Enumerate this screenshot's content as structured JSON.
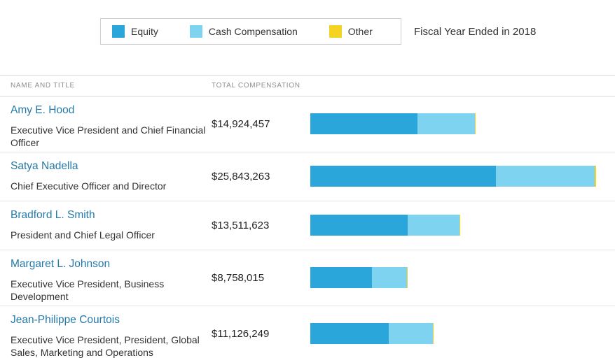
{
  "header": {
    "fiscal_year_label": "Fiscal Year Ended in 2018"
  },
  "legend": {
    "items": [
      {
        "label": "Equity",
        "color": "#2BA6DB"
      },
      {
        "label": "Cash Compensation",
        "color": "#7ED3F0"
      },
      {
        "label": "Other",
        "color": "#F5D323"
      }
    ]
  },
  "table": {
    "col_name_title": "NAME AND TITLE",
    "col_total_comp": "TOTAL COMPENSATION"
  },
  "chart_data": {
    "type": "bar",
    "orientation": "horizontal",
    "stacked": true,
    "title": "Executive compensation, Fiscal Year Ended in 2018",
    "legend_entries": [
      "Equity",
      "Cash Compensation",
      "Other"
    ],
    "legend_position": "top",
    "grid": false,
    "xlim": [
      0,
      25843263
    ],
    "colors": {
      "equity": "#2BA6DB",
      "cash": "#7ED3F0",
      "other": "#F5D323"
    },
    "rows": [
      {
        "name": "Amy E. Hood",
        "title": "Executive Vice President and Chief Financial Officer",
        "total_label": "$14,924,457",
        "total": 14924457,
        "equity": 9704764,
        "cash": 5208787,
        "other": 10906
      },
      {
        "name": "Satya Nadella",
        "title": "Chief Executive Officer and Director",
        "total_label": "$25,843,263",
        "total": 25843263,
        "equity": 16807208,
        "cash": 8925000,
        "other": 111055
      },
      {
        "name": "Bradford L. Smith",
        "title": "President and Chief Legal Officer",
        "total_label": "$13,511,623",
        "total": 13511623,
        "equity": 8809274,
        "cash": 4691191,
        "other": 11158
      },
      {
        "name": "Margaret L. Johnson",
        "title": "Executive Vice President, Business Development",
        "total_label": "$8,758,015",
        "total": 8758015,
        "equity": 5604797,
        "cash": 3136893,
        "other": 16325
      },
      {
        "name": "Jean-Philippe Courtois",
        "title": "Executive Vice President, President, Global Sales, Marketing and Operations",
        "total_label": "$11,126,249",
        "total": 11126249,
        "equity": 7065188,
        "cash": 4025112,
        "other": 35949
      }
    ]
  }
}
